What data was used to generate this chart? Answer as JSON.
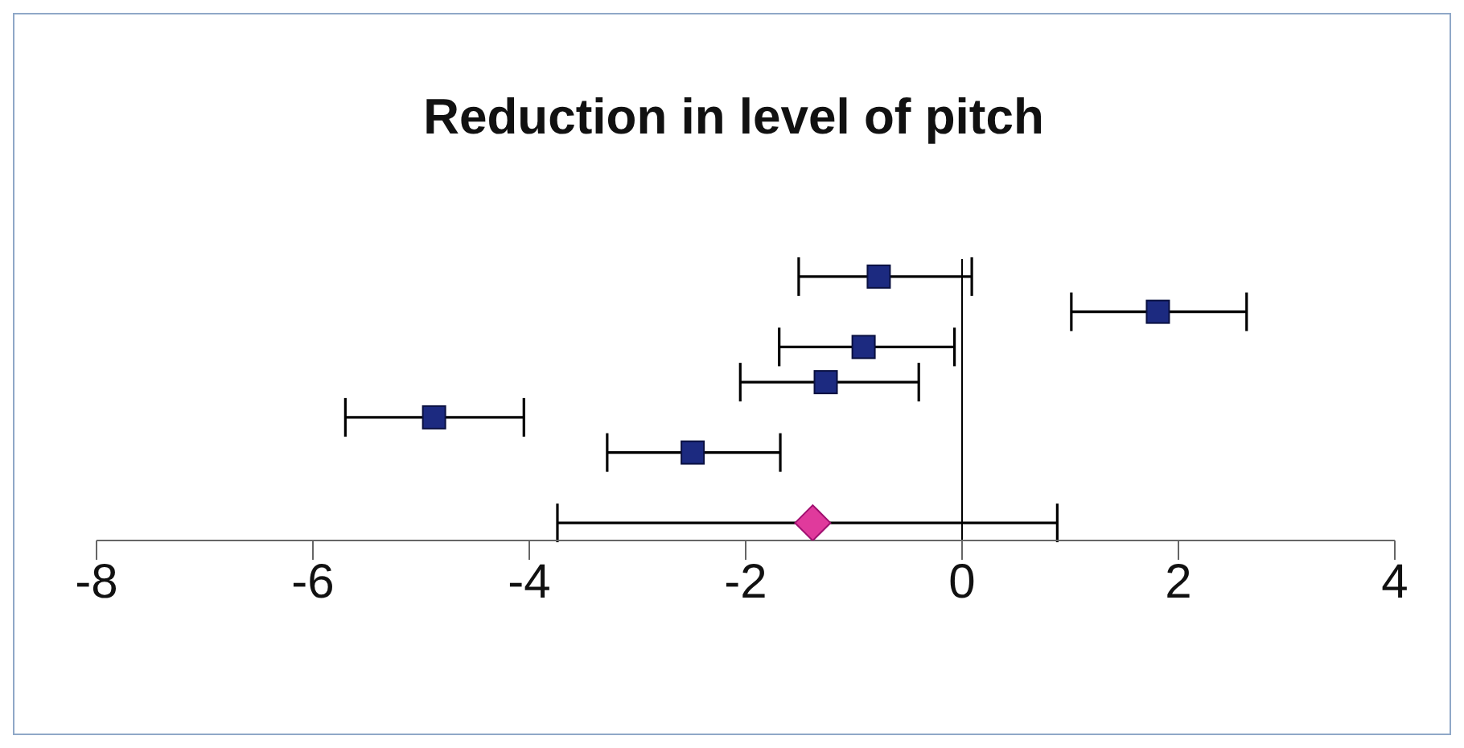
{
  "chart_data": {
    "type": "scatter",
    "title": "Reduction in level of pitch",
    "orientation": "horizontal",
    "categories": [
      null,
      null,
      null,
      null,
      null,
      null,
      null,
      null
    ],
    "series": [
      {
        "color": "#1c2a80",
        "marker": "square",
        "values": [
          -0.77,
          1.81,
          -0.91,
          -1.26,
          -4.88,
          -2.49,
          null,
          null
        ],
        "errors": [
          [
            -1.51,
            0.09
          ],
          [
            1.01,
            2.63
          ],
          [
            -1.69,
            -0.07
          ],
          [
            -2.05,
            -0.4
          ],
          [
            -5.7,
            -4.05
          ],
          [
            -3.28,
            -1.68
          ],
          null,
          null
        ]
      },
      {
        "color": "#e03a9c",
        "marker": "diamond",
        "values": [
          null,
          null,
          null,
          null,
          null,
          null,
          null,
          -1.38
        ],
        "errors": [
          null,
          null,
          null,
          null,
          null,
          null,
          null,
          [
            -3.74,
            0.88
          ]
        ]
      }
    ],
    "xlim": [
      -8,
      4
    ],
    "xticks": [
      -8,
      -6,
      -4,
      -2,
      0,
      2,
      4
    ],
    "ref_lines": [
      {
        "axis": "x",
        "value": 0,
        "color": "#000000"
      }
    ],
    "grid": false,
    "tick_labels": "x"
  }
}
